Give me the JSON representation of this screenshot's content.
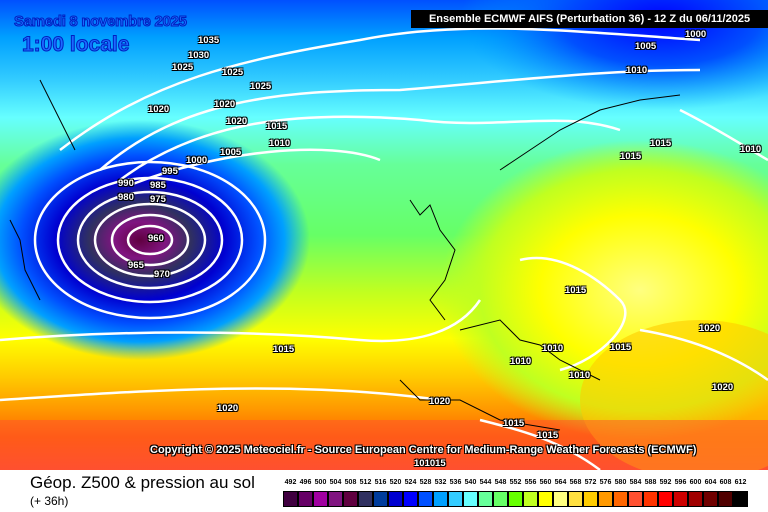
{
  "header": {
    "model_title": "Ensemble ECMWF AIFS  (Perturbation 36)  -  12 Z du 06/11/2025",
    "date_label": "Samedi 8 novembre 2025",
    "hour_label": "1:00 locale"
  },
  "map": {
    "copyright": "Copyright © 2025 Meteociel.fr - Source European Centre for Medium-Range Weather Forecasts (ECMWF)",
    "isobar_labels": [
      "1035",
      "1030",
      "1025",
      "1025",
      "1025",
      "1020",
      "1020",
      "1020",
      "1015",
      "1010",
      "1005",
      "1000",
      "995",
      "990",
      "985",
      "980",
      "975",
      "960",
      "965",
      "970",
      "1005",
      "1000",
      "1010",
      "1015",
      "1015",
      "1010",
      "1015",
      "1015",
      "1010",
      "1010",
      "1010",
      "1020",
      "1020",
      "1020",
      "1020",
      "1015",
      "1015",
      "1015",
      "101015"
    ],
    "low_center_color": "#5a005a",
    "isobar_color": "#ffffff"
  },
  "footer": {
    "title": "Géop. Z500 & pression au sol",
    "lead_time": "(+ 36h)"
  },
  "legend": {
    "labels": [
      "492",
      "496",
      "500",
      "504",
      "508",
      "512",
      "516",
      "520",
      "524",
      "528",
      "532",
      "536",
      "540",
      "544",
      "548",
      "552",
      "556",
      "560",
      "564",
      "568",
      "572",
      "576",
      "580",
      "584",
      "588",
      "592",
      "596",
      "600",
      "604",
      "608",
      "612"
    ],
    "colors": [
      "#400040",
      "#660066",
      "#a000a0",
      "#801480",
      "#600040",
      "#303060",
      "#003c9c",
      "#0000d0",
      "#0000ff",
      "#0050ff",
      "#00a0ff",
      "#33ccff",
      "#66ffff",
      "#66ff99",
      "#66ff66",
      "#66ff00",
      "#c0ff20",
      "#ffff00",
      "#ffff80",
      "#ffe040",
      "#ffcc00",
      "#ff9900",
      "#ff6600",
      "#ff5030",
      "#ff3300",
      "#ff0000",
      "#cc0000",
      "#a00000",
      "#700000",
      "#500000",
      "#000000"
    ]
  }
}
